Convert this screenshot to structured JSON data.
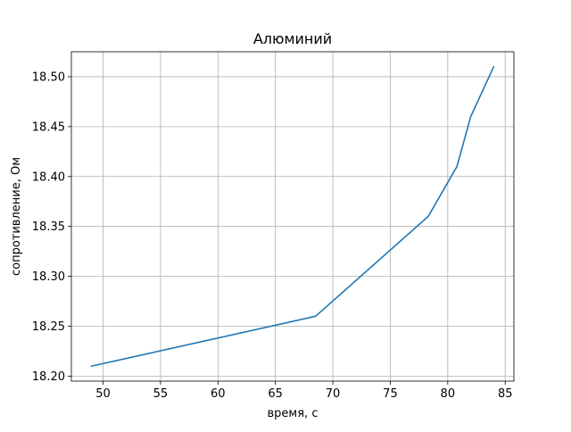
{
  "chart_data": {
    "type": "line",
    "title": "Алюминий",
    "xlabel": "время, с",
    "ylabel": "сопротивление, Ом",
    "xlim": [
      47.24,
      85.76
    ],
    "ylim": [
      18.195,
      18.525
    ],
    "xticks": [
      50,
      55,
      60,
      65,
      70,
      75,
      80,
      85
    ],
    "xtick_labels": [
      "50",
      "55",
      "60",
      "65",
      "70",
      "75",
      "80",
      "85"
    ],
    "yticks": [
      18.2,
      18.25,
      18.3,
      18.35,
      18.4,
      18.45,
      18.5
    ],
    "ytick_labels": [
      "18.20",
      "18.25",
      "18.30",
      "18.35",
      "18.40",
      "18.45",
      "18.50"
    ],
    "grid": true,
    "legend": "none",
    "series": [
      {
        "color": "#1f77b4",
        "x": [
          48.99,
          68.5,
          78.3,
          80.8,
          82.0,
          84.0
        ],
        "y": [
          18.21,
          18.26,
          18.36,
          18.41,
          18.46,
          18.51
        ]
      }
    ]
  }
}
